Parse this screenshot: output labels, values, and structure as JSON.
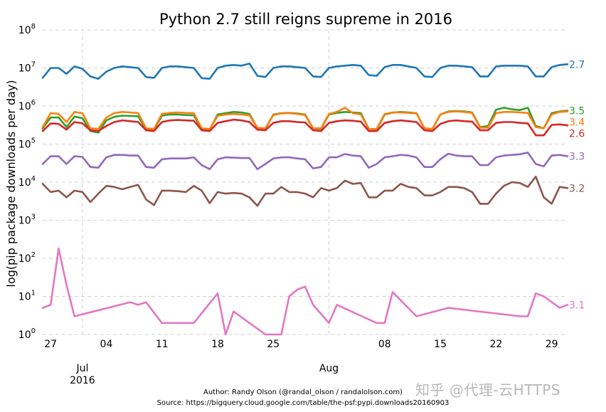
{
  "chart_data": {
    "type": "line",
    "title": "Python 2.7 still reigns supreme in 2016",
    "ylabel": "log(pip package downloads per day)",
    "xlabel": "",
    "yscale": "log",
    "ylim": [
      1,
      100000000
    ],
    "y_ticks": [
      {
        "value": 1,
        "base": "10",
        "exp": "0"
      },
      {
        "value": 10,
        "base": "10",
        "exp": "1"
      },
      {
        "value": 100,
        "base": "10",
        "exp": "2"
      },
      {
        "value": 1000,
        "base": "10",
        "exp": "3"
      },
      {
        "value": 10000,
        "base": "10",
        "exp": "4"
      },
      {
        "value": 100000,
        "base": "10",
        "exp": "5"
      },
      {
        "value": 1000000,
        "base": "10",
        "exp": "6"
      },
      {
        "value": 10000000,
        "base": "10",
        "exp": "7"
      },
      {
        "value": 100000000,
        "base": "10",
        "exp": "8"
      }
    ],
    "xlim": [
      "2016-06-26",
      "2016-08-31"
    ],
    "minor_ticks": [
      {
        "date": "2016-06-27",
        "label": "27"
      },
      {
        "date": "2016-07-04",
        "label": "04"
      },
      {
        "date": "2016-07-11",
        "label": "11"
      },
      {
        "date": "2016-07-18",
        "label": "18"
      },
      {
        "date": "2016-07-25",
        "label": "25"
      },
      {
        "date": "2016-08-08",
        "label": "08"
      },
      {
        "date": "2016-08-15",
        "label": "15"
      },
      {
        "date": "2016-08-22",
        "label": "22"
      },
      {
        "date": "2016-08-29",
        "label": "29"
      }
    ],
    "major_ticks": [
      {
        "date": "2016-07-01",
        "label": "Jul",
        "year": "2016"
      },
      {
        "date": "2016-08-01",
        "label": "Aug",
        "year": ""
      }
    ],
    "grid": true,
    "x": [
      "2016-06-26",
      "2016-06-27",
      "2016-06-28",
      "2016-06-29",
      "2016-06-30",
      "2016-07-01",
      "2016-07-02",
      "2016-07-03",
      "2016-07-04",
      "2016-07-05",
      "2016-07-06",
      "2016-07-07",
      "2016-07-08",
      "2016-07-09",
      "2016-07-10",
      "2016-07-11",
      "2016-07-12",
      "2016-07-13",
      "2016-07-14",
      "2016-07-15",
      "2016-07-16",
      "2016-07-17",
      "2016-07-18",
      "2016-07-19",
      "2016-07-20",
      "2016-07-21",
      "2016-07-22",
      "2016-07-23",
      "2016-07-24",
      "2016-07-25",
      "2016-07-26",
      "2016-07-27",
      "2016-07-28",
      "2016-07-29",
      "2016-07-30",
      "2016-07-31",
      "2016-08-01",
      "2016-08-02",
      "2016-08-03",
      "2016-08-04",
      "2016-08-05",
      "2016-08-06",
      "2016-08-07",
      "2016-08-08",
      "2016-08-09",
      "2016-08-10",
      "2016-08-11",
      "2016-08-12",
      "2016-08-13",
      "2016-08-14",
      "2016-08-15",
      "2016-08-16",
      "2016-08-17",
      "2016-08-18",
      "2016-08-19",
      "2016-08-20",
      "2016-08-21",
      "2016-08-22",
      "2016-08-23",
      "2016-08-24",
      "2016-08-25",
      "2016-08-26",
      "2016-08-27",
      "2016-08-28",
      "2016-08-29",
      "2016-08-30",
      "2016-08-31"
    ],
    "series": [
      {
        "name": "2.7",
        "color": "#1f77b4",
        "values": [
          5500000,
          10000000,
          10000000,
          7000000,
          11000000,
          9500000,
          6000000,
          5200000,
          8000000,
          10000000,
          11000000,
          10500000,
          10000000,
          5800000,
          5500000,
          10000000,
          11000000,
          11000000,
          10500000,
          10000000,
          5400000,
          5200000,
          10000000,
          11500000,
          12000000,
          11500000,
          13000000,
          6200000,
          5800000,
          10000000,
          11000000,
          11000000,
          10500000,
          10000000,
          6000000,
          5800000,
          10000000,
          11000000,
          11500000,
          12000000,
          11500000,
          6500000,
          6200000,
          10500000,
          12000000,
          12000000,
          11000000,
          10000000,
          6000000,
          5800000,
          10000000,
          11500000,
          11500000,
          11000000,
          10500000,
          6000000,
          6000000,
          11000000,
          11500000,
          11500000,
          11500000,
          11000000,
          6000000,
          6000000,
          10500000,
          12000000,
          12500000
        ]
      },
      {
        "name": "3.5",
        "color": "#2ca02c",
        "values": [
          260000,
          500000,
          500000,
          280000,
          530000,
          480000,
          220000,
          200000,
          420000,
          520000,
          560000,
          550000,
          540000,
          240000,
          240000,
          560000,
          600000,
          600000,
          580000,
          570000,
          240000,
          240000,
          600000,
          650000,
          700000,
          680000,
          620000,
          260000,
          250000,
          600000,
          650000,
          660000,
          640000,
          600000,
          260000,
          250000,
          600000,
          660000,
          700000,
          680000,
          650000,
          250000,
          240000,
          600000,
          670000,
          700000,
          680000,
          650000,
          260000,
          250000,
          600000,
          720000,
          740000,
          720000,
          680000,
          280000,
          300000,
          800000,
          900000,
          820000,
          780000,
          900000,
          300000,
          260000,
          650000,
          720000,
          760000
        ]
      },
      {
        "name": "3.4",
        "color": "#ff7f0e",
        "values": [
          280000,
          650000,
          620000,
          380000,
          700000,
          650000,
          260000,
          250000,
          500000,
          650000,
          700000,
          680000,
          650000,
          260000,
          250000,
          620000,
          660000,
          680000,
          660000,
          650000,
          260000,
          250000,
          550000,
          600000,
          620000,
          600000,
          570000,
          270000,
          260000,
          580000,
          640000,
          650000,
          620000,
          580000,
          260000,
          260000,
          620000,
          700000,
          900000,
          650000,
          600000,
          250000,
          250000,
          620000,
          680000,
          680000,
          660000,
          640000,
          260000,
          250000,
          600000,
          700000,
          720000,
          700000,
          660000,
          270000,
          270000,
          650000,
          700000,
          700000,
          680000,
          660000,
          280000,
          260000,
          600000,
          700000,
          720000
        ]
      },
      {
        "name": "2.6",
        "color": "#d62728",
        "values": [
          220000,
          350000,
          340000,
          240000,
          380000,
          350000,
          230000,
          220000,
          300000,
          380000,
          420000,
          400000,
          380000,
          230000,
          220000,
          380000,
          420000,
          430000,
          420000,
          410000,
          230000,
          220000,
          360000,
          400000,
          440000,
          420000,
          380000,
          240000,
          230000,
          360000,
          400000,
          400000,
          380000,
          370000,
          230000,
          220000,
          360000,
          400000,
          420000,
          410000,
          390000,
          220000,
          220000,
          360000,
          400000,
          420000,
          400000,
          380000,
          230000,
          220000,
          340000,
          400000,
          420000,
          400000,
          390000,
          230000,
          230000,
          360000,
          380000,
          380000,
          360000,
          350000,
          170000,
          170000,
          320000,
          330000,
          310000
        ]
      },
      {
        "name": "3.3",
        "color": "#9467bd",
        "values": [
          30000,
          48000,
          48000,
          30000,
          48000,
          46000,
          25000,
          24000,
          45000,
          52000,
          52000,
          50000,
          50000,
          25000,
          24000,
          40000,
          42000,
          42000,
          42000,
          45000,
          28000,
          22000,
          40000,
          45000,
          44000,
          43000,
          43000,
          22000,
          30000,
          42000,
          45000,
          45000,
          42000,
          40000,
          23000,
          25000,
          45000,
          45000,
          55000,
          50000,
          48000,
          24000,
          30000,
          45000,
          48000,
          52000,
          50000,
          45000,
          25000,
          25000,
          40000,
          56000,
          50000,
          48000,
          48000,
          28000,
          28000,
          45000,
          50000,
          52000,
          54000,
          60000,
          30000,
          26000,
          50000,
          52000,
          48000
        ]
      },
      {
        "name": "3.2",
        "color": "#8c564b",
        "values": [
          9000,
          5500,
          6000,
          4000,
          6000,
          5500,
          3000,
          5000,
          8000,
          7500,
          6500,
          7500,
          8500,
          3500,
          2500,
          6000,
          6000,
          5800,
          5500,
          8000,
          6000,
          2800,
          5500,
          5000,
          5200,
          5000,
          4000,
          2400,
          5000,
          5000,
          7500,
          5500,
          5500,
          5000,
          4000,
          7000,
          6000,
          7000,
          11000,
          9000,
          9500,
          4000,
          4000,
          6000,
          6000,
          9000,
          7500,
          7000,
          4500,
          4500,
          5500,
          7500,
          7500,
          7000,
          5500,
          2700,
          2700,
          5000,
          8000,
          10000,
          9500,
          7500,
          14000,
          4000,
          2700,
          7500,
          7000
        ]
      },
      {
        "name": "3.1",
        "color": "#e377c2",
        "values": [
          5,
          6,
          180,
          20,
          3,
          null,
          null,
          null,
          null,
          null,
          null,
          7,
          6,
          7,
          null,
          2,
          2,
          null,
          null,
          2,
          null,
          null,
          12,
          1,
          4,
          null,
          null,
          null,
          1,
          1,
          1,
          10,
          15,
          18,
          6,
          null,
          2,
          6,
          null,
          null,
          null,
          null,
          2,
          2,
          13,
          null,
          null,
          3,
          null,
          null,
          null,
          5,
          null,
          null,
          null,
          null,
          null,
          null,
          null,
          null,
          3,
          3,
          12,
          10,
          null,
          5,
          6
        ]
      }
    ]
  },
  "credits": {
    "author": "Author: Randy Olson (@randal_olson / randalolson.com)",
    "source": "Source: https://bigquery.cloud.google.com/table/the-psf:pypi.downloads20160903"
  },
  "watermark": "知乎 @代理-云HTTPS"
}
